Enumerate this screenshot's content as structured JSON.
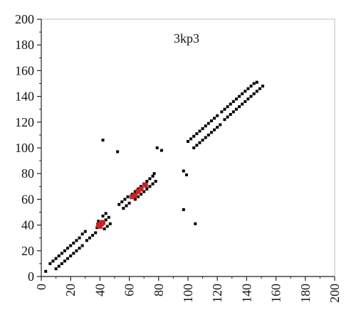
{
  "chart_data": {
    "type": "scatter",
    "title": "3kp3",
    "xlabel": "",
    "ylabel": "",
    "xlim": [
      0,
      200
    ],
    "ylim": [
      0,
      200
    ],
    "xticks": [
      0,
      20,
      40,
      60,
      80,
      100,
      120,
      140,
      160,
      180,
      200
    ],
    "yticks": [
      0,
      20,
      40,
      60,
      80,
      100,
      120,
      140,
      160,
      180,
      200
    ],
    "grid": false,
    "series": [
      {
        "color": "#000000",
        "points": [
          [
            3,
            4
          ],
          [
            6,
            10
          ],
          [
            8,
            12
          ],
          [
            10,
            14
          ],
          [
            12,
            16
          ],
          [
            14,
            18
          ],
          [
            16,
            20
          ],
          [
            18,
            22
          ],
          [
            20,
            24
          ],
          [
            22,
            26
          ],
          [
            24,
            28
          ],
          [
            26,
            30
          ],
          [
            28,
            33
          ],
          [
            30,
            35
          ],
          [
            10,
            6
          ],
          [
            12,
            8
          ],
          [
            14,
            10
          ],
          [
            16,
            12
          ],
          [
            18,
            14
          ],
          [
            20,
            16
          ],
          [
            22,
            18
          ],
          [
            24,
            20
          ],
          [
            26,
            22
          ],
          [
            28,
            24
          ],
          [
            31,
            28
          ],
          [
            33,
            30
          ],
          [
            35,
            32
          ],
          [
            37,
            34
          ],
          [
            38,
            38
          ],
          [
            40,
            40
          ],
          [
            42,
            42
          ],
          [
            44,
            44
          ],
          [
            46,
            46
          ],
          [
            39,
            43
          ],
          [
            42,
            47
          ],
          [
            44,
            49
          ],
          [
            43,
            37
          ],
          [
            45,
            39
          ],
          [
            47,
            41
          ],
          [
            42,
            106
          ],
          [
            52,
            97
          ],
          [
            53,
            56
          ],
          [
            55,
            58
          ],
          [
            57,
            60
          ],
          [
            59,
            62
          ],
          [
            56,
            53
          ],
          [
            58,
            55
          ],
          [
            60,
            57
          ],
          [
            62,
            64
          ],
          [
            64,
            66
          ],
          [
            66,
            68
          ],
          [
            68,
            70
          ],
          [
            70,
            72
          ],
          [
            72,
            74
          ],
          [
            74,
            76
          ],
          [
            76,
            78
          ],
          [
            77,
            80
          ],
          [
            64,
            60
          ],
          [
            66,
            62
          ],
          [
            68,
            64
          ],
          [
            70,
            66
          ],
          [
            72,
            68
          ],
          [
            74,
            70
          ],
          [
            76,
            72
          ],
          [
            78,
            74
          ],
          [
            79,
            100
          ],
          [
            82,
            98
          ],
          [
            97,
            82
          ],
          [
            99,
            79
          ],
          [
            97,
            52
          ],
          [
            105,
            41
          ],
          [
            100,
            105
          ],
          [
            102,
            107
          ],
          [
            104,
            109
          ],
          [
            106,
            111
          ],
          [
            108,
            113
          ],
          [
            110,
            115
          ],
          [
            112,
            117
          ],
          [
            114,
            119
          ],
          [
            116,
            121
          ],
          [
            118,
            123
          ],
          [
            120,
            125
          ],
          [
            123,
            128
          ],
          [
            125,
            130
          ],
          [
            127,
            132
          ],
          [
            129,
            134
          ],
          [
            131,
            136
          ],
          [
            133,
            138
          ],
          [
            135,
            140
          ],
          [
            137,
            142
          ],
          [
            139,
            144
          ],
          [
            141,
            146
          ],
          [
            143,
            148
          ],
          [
            145,
            150
          ],
          [
            147,
            151
          ],
          [
            104,
            100
          ],
          [
            106,
            102
          ],
          [
            108,
            104
          ],
          [
            110,
            106
          ],
          [
            112,
            108
          ],
          [
            114,
            110
          ],
          [
            116,
            112
          ],
          [
            118,
            114
          ],
          [
            120,
            116
          ],
          [
            122,
            118
          ],
          [
            125,
            122
          ],
          [
            127,
            124
          ],
          [
            129,
            126
          ],
          [
            131,
            128
          ],
          [
            133,
            130
          ],
          [
            135,
            132
          ],
          [
            137,
            134
          ],
          [
            139,
            136
          ],
          [
            141,
            138
          ],
          [
            143,
            140
          ],
          [
            145,
            142
          ],
          [
            147,
            144
          ],
          [
            149,
            146
          ],
          [
            151,
            148
          ]
        ]
      },
      {
        "color": "#cc2222",
        "points": [
          [
            39,
            40
          ],
          [
            41,
            41
          ],
          [
            40,
            39
          ],
          [
            42,
            42
          ],
          [
            62,
            62
          ],
          [
            64,
            63
          ],
          [
            66,
            66
          ],
          [
            68,
            68
          ],
          [
            71,
            71
          ]
        ]
      }
    ]
  }
}
